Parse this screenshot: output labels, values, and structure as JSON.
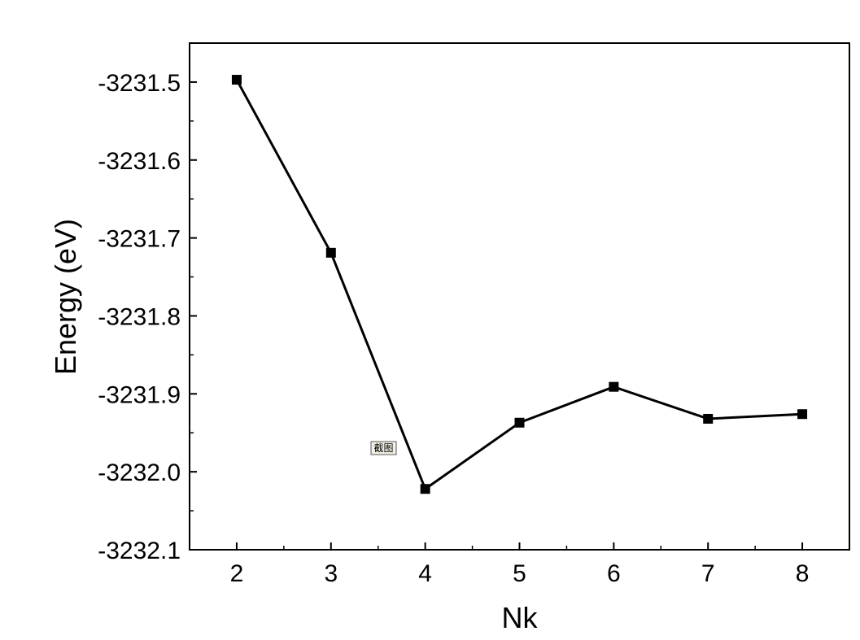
{
  "chart_data": {
    "type": "line",
    "title": "",
    "xlabel": "Nk",
    "ylabel": "Energy (eV)",
    "xlim": [
      1.5,
      8.5
    ],
    "ylim": [
      -3232.1,
      -3231.45
    ],
    "x_ticks": [
      2,
      3,
      4,
      5,
      6,
      7,
      8
    ],
    "x_tick_labels": [
      "2",
      "3",
      "4",
      "5",
      "6",
      "7",
      "8"
    ],
    "y_ticks": [
      -3231.5,
      -3231.6,
      -3231.7,
      -3231.8,
      -3231.9,
      -3232.0,
      -3232.1
    ],
    "y_tick_labels": [
      "-3231.5",
      "-3231.6",
      "-3231.7",
      "-3231.8",
      "-3231.9",
      "-3232.0",
      "-3232.1"
    ],
    "grid": false,
    "marker": "square",
    "series": [
      {
        "x": [
          2,
          3,
          4,
          5,
          6,
          7,
          8
        ],
        "y": [
          -3231.497,
          -3231.719,
          -3232.022,
          -3231.937,
          -3231.891,
          -3231.932,
          -3231.926
        ]
      }
    ],
    "annotations": [
      {
        "text": "截图"
      }
    ]
  }
}
